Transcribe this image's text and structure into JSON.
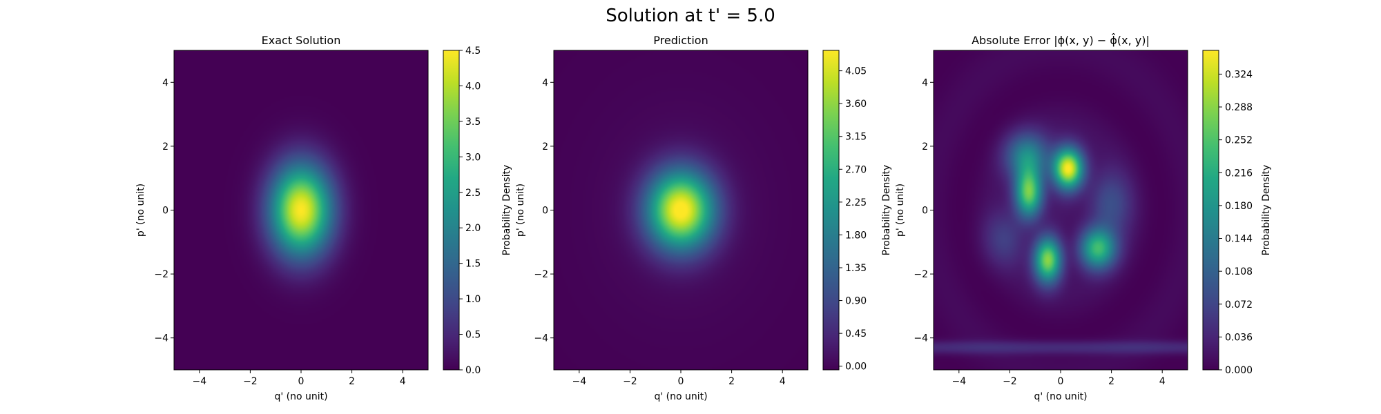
{
  "figure": {
    "suptitle": "Solution at t' = 5.0"
  },
  "chart_data": [
    {
      "type": "heatmap",
      "title": "Exact Solution",
      "xlabel": "q' (no unit)",
      "ylabel": "p' (no unit)",
      "xlim": [
        -5,
        5
      ],
      "ylim": [
        -5,
        5
      ],
      "xticks": [
        "−4",
        "−2",
        "0",
        "2",
        "4"
      ],
      "yticks": [
        "−4",
        "−2",
        "0",
        "2",
        "4"
      ],
      "colormap": "viridis",
      "colorbar": {
        "label": "Probability Density",
        "min": 0.0,
        "max": 4.5,
        "ticks": [
          "0.0",
          "0.5",
          "1.0",
          "1.5",
          "2.0",
          "2.5",
          "3.0",
          "3.5",
          "4.0",
          "4.5"
        ]
      },
      "field": {
        "description_peaks": [
          {
            "q": 0.0,
            "p": 0.0,
            "value": 4.5
          }
        ],
        "sigma_q": 0.85,
        "sigma_p": 1.0
      }
    },
    {
      "type": "heatmap",
      "title": "Prediction",
      "xlabel": "q' (no unit)",
      "ylabel": "p' (no unit)",
      "xlim": [
        -5,
        5
      ],
      "ylim": [
        -5,
        5
      ],
      "xticks": [
        "−4",
        "−2",
        "0",
        "2",
        "4"
      ],
      "yticks": [
        "−4",
        "−2",
        "0",
        "2",
        "4"
      ],
      "colormap": "viridis",
      "colorbar": {
        "label": "Probability Density",
        "min": -0.05,
        "max": 4.33,
        "ticks": [
          "0.00",
          "0.45",
          "0.90",
          "1.35",
          "1.80",
          "2.25",
          "2.70",
          "3.15",
          "3.60",
          "4.05"
        ]
      },
      "field": {
        "description_peaks": [
          {
            "q": 0.0,
            "p": 0.0,
            "value": 4.33
          }
        ],
        "sigma_q": 0.9,
        "sigma_p": 0.85
      }
    },
    {
      "type": "heatmap",
      "title": "Absolute Error |ϕ(x, y) − ϕ̂(x, y)|",
      "xlabel": "q' (no unit)",
      "ylabel": "p' (no unit)",
      "xlim": [
        -5,
        5
      ],
      "ylim": [
        -5,
        5
      ],
      "xticks": [
        "−4",
        "−2",
        "0",
        "2",
        "4"
      ],
      "yticks": [
        "−4",
        "−2",
        "0",
        "2",
        "4"
      ],
      "colormap": "viridis",
      "colorbar": {
        "label": "Probability Density",
        "min": 0.0,
        "max": 0.35,
        "ticks": [
          "0.000",
          "0.036",
          "0.072",
          "0.108",
          "0.144",
          "0.180",
          "0.216",
          "0.252",
          "0.288",
          "0.324"
        ]
      },
      "field": {
        "description_peaks": [
          {
            "q": 0.3,
            "p": 1.3,
            "value": 0.35
          },
          {
            "q": -1.2,
            "p": 0.6,
            "value": 0.3
          },
          {
            "q": -0.5,
            "p": -1.5,
            "value": 0.3
          },
          {
            "q": 1.4,
            "p": -1.2,
            "value": 0.25
          }
        ]
      }
    }
  ]
}
